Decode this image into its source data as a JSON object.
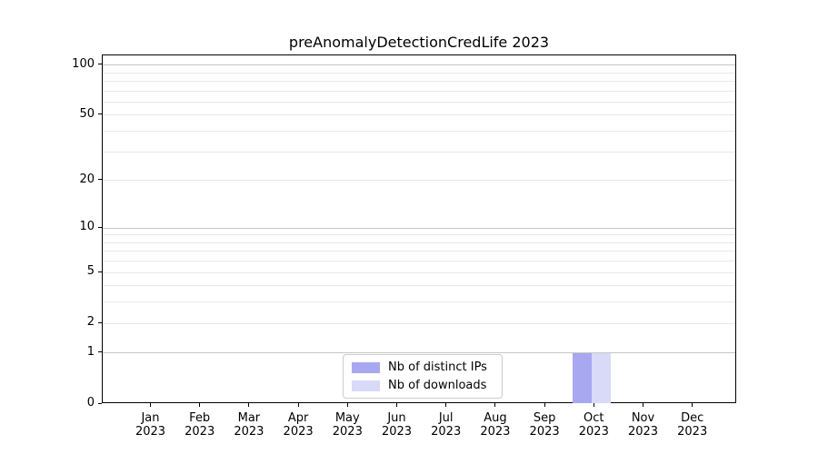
{
  "title": "preAnomalyDetectionCredLife 2023",
  "chart_data": {
    "type": "bar",
    "title": "preAnomalyDetectionCredLife 2023",
    "months": [
      "Jan",
      "Feb",
      "Mar",
      "Apr",
      "May",
      "Jun",
      "Jul",
      "Aug",
      "Sep",
      "Oct",
      "Nov",
      "Dec"
    ],
    "year": "2023",
    "categories": [
      "Jan 2023",
      "Feb 2023",
      "Mar 2023",
      "Apr 2023",
      "May 2023",
      "Jun 2023",
      "Jul 2023",
      "Aug 2023",
      "Sep 2023",
      "Oct 2023",
      "Nov 2023",
      "Dec 2023"
    ],
    "series": [
      {
        "name": "Nb of distinct IPs",
        "color": "#a8a8f0",
        "values": [
          0,
          0,
          0,
          0,
          0,
          0,
          0,
          0,
          0,
          1,
          0,
          0
        ]
      },
      {
        "name": "Nb of downloads",
        "color": "#d9d9f8",
        "values": [
          0,
          0,
          0,
          0,
          0,
          0,
          0,
          0,
          0,
          1,
          0,
          0
        ]
      }
    ],
    "y_scale": "log1p",
    "y_tick_labels": [
      "100",
      "50",
      "20",
      "10",
      "5",
      "2",
      "1",
      "0"
    ],
    "y_ticks": [
      100,
      50,
      20,
      10,
      5,
      2,
      1,
      0
    ],
    "y_major_grid_values": [
      1,
      10,
      100
    ],
    "y_minor_grid_values": [
      2,
      5,
      20,
      50,
      3,
      4,
      6,
      7,
      8,
      9,
      30,
      40,
      60,
      70,
      80,
      90
    ],
    "ylim": [
      0,
      113
    ],
    "grid": true,
    "legend_position": "lower center",
    "legend_entries": [
      "Nb of distinct IPs",
      "Nb of downloads"
    ]
  },
  "colors": {
    "background": "#ffffff",
    "spine": "#000000",
    "major_grid": "#c6c6c6",
    "minor_grid": "#e8e8e8",
    "bar_distinct_ips": "#a8a8f0",
    "bar_downloads": "#d9d9f8",
    "legend_border": "#cccccc",
    "text": "#000000"
  }
}
